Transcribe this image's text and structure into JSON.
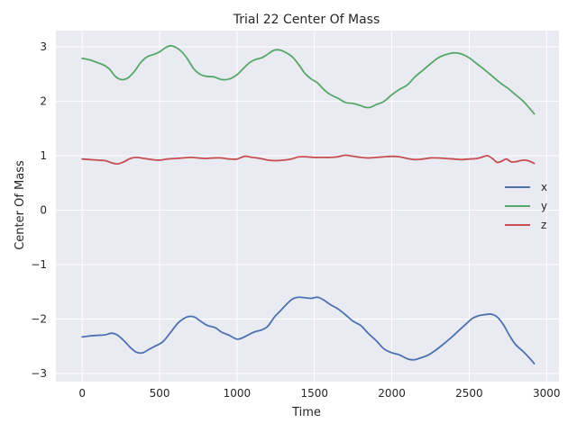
{
  "chart_data": {
    "type": "line",
    "title": "Trial 22 Center Of Mass",
    "xlabel": "Time",
    "ylabel": "Center Of Mass",
    "xlim": [
      -170,
      3080
    ],
    "ylim": [
      -3.15,
      3.3
    ],
    "xticks": [
      0,
      500,
      1000,
      1500,
      2000,
      2500,
      3000
    ],
    "xtick_labels": [
      "0",
      "500",
      "1000",
      "1500",
      "2000",
      "2500",
      "3000"
    ],
    "yticks": [
      -3,
      -2,
      -1,
      0,
      1,
      2,
      3
    ],
    "ytick_labels": [
      "−3",
      "−2",
      "−1",
      "0",
      "1",
      "2",
      "3"
    ],
    "grid": true,
    "legend_position": "center-right",
    "colors": {
      "background": "#eaeaf2",
      "grid": "#ffffff",
      "x": "#4c72b0",
      "y": "#55a868",
      "z": "#c44e52"
    },
    "series": [
      {
        "name": "x",
        "x": [
          0,
          50,
          100,
          150,
          190,
          230,
          270,
          310,
          350,
          390,
          430,
          470,
          520,
          570,
          620,
          670,
          700,
          730,
          770,
          810,
          860,
          900,
          950,
          1000,
          1040,
          1080,
          1120,
          1160,
          1200,
          1240,
          1280,
          1320,
          1360,
          1400,
          1440,
          1480,
          1520,
          1560,
          1600,
          1650,
          1700,
          1750,
          1800,
          1850,
          1900,
          1950,
          2000,
          2050,
          2100,
          2140,
          2180,
          2230,
          2280,
          2330,
          2380,
          2430,
          2480,
          2520,
          2560,
          2600,
          2640,
          2680,
          2720,
          2760,
          2800,
          2850,
          2900,
          2920
        ],
        "values": [
          -2.33,
          -2.31,
          -2.3,
          -2.29,
          -2.26,
          -2.3,
          -2.4,
          -2.52,
          -2.61,
          -2.62,
          -2.56,
          -2.5,
          -2.42,
          -2.25,
          -2.07,
          -1.97,
          -1.95,
          -1.97,
          -2.05,
          -2.12,
          -2.16,
          -2.24,
          -2.3,
          -2.37,
          -2.34,
          -2.28,
          -2.23,
          -2.2,
          -2.13,
          -1.97,
          -1.85,
          -1.73,
          -1.63,
          -1.6,
          -1.61,
          -1.62,
          -1.6,
          -1.65,
          -1.73,
          -1.81,
          -1.92,
          -2.04,
          -2.12,
          -2.27,
          -2.4,
          -2.55,
          -2.62,
          -2.66,
          -2.73,
          -2.75,
          -2.72,
          -2.67,
          -2.58,
          -2.47,
          -2.35,
          -2.22,
          -2.09,
          -1.99,
          -1.94,
          -1.92,
          -1.91,
          -1.96,
          -2.1,
          -2.3,
          -2.47,
          -2.6,
          -2.75,
          -2.82
        ]
      },
      {
        "name": "y",
        "x": [
          0,
          50,
          100,
          150,
          180,
          210,
          240,
          270,
          300,
          340,
          380,
          420,
          460,
          500,
          540,
          570,
          600,
          640,
          680,
          720,
          760,
          800,
          850,
          900,
          950,
          1000,
          1040,
          1080,
          1120,
          1160,
          1200,
          1240,
          1280,
          1320,
          1360,
          1400,
          1440,
          1480,
          1520,
          1560,
          1600,
          1650,
          1700,
          1750,
          1800,
          1830,
          1860,
          1900,
          1950,
          2000,
          2050,
          2100,
          2150,
          2200,
          2250,
          2300,
          2350,
          2400,
          2450,
          2500,
          2550,
          2600,
          2650,
          2700,
          2750,
          2800,
          2850,
          2900,
          2920
        ],
        "values": [
          2.79,
          2.76,
          2.71,
          2.65,
          2.58,
          2.47,
          2.41,
          2.4,
          2.44,
          2.56,
          2.72,
          2.82,
          2.86,
          2.91,
          2.99,
          3.02,
          3.0,
          2.92,
          2.78,
          2.6,
          2.5,
          2.46,
          2.45,
          2.4,
          2.41,
          2.49,
          2.6,
          2.71,
          2.77,
          2.8,
          2.87,
          2.94,
          2.94,
          2.89,
          2.81,
          2.67,
          2.51,
          2.41,
          2.34,
          2.22,
          2.13,
          2.06,
          1.98,
          1.96,
          1.92,
          1.89,
          1.89,
          1.94,
          2.0,
          2.12,
          2.22,
          2.3,
          2.45,
          2.57,
          2.69,
          2.8,
          2.86,
          2.89,
          2.87,
          2.8,
          2.69,
          2.58,
          2.46,
          2.34,
          2.24,
          2.12,
          2.0,
          1.84,
          1.77
        ]
      },
      {
        "name": "z",
        "x": [
          0,
          50,
          100,
          150,
          190,
          230,
          270,
          310,
          350,
          400,
          450,
          500,
          550,
          600,
          650,
          700,
          750,
          800,
          850,
          900,
          950,
          1000,
          1050,
          1100,
          1150,
          1200,
          1250,
          1300,
          1350,
          1400,
          1450,
          1500,
          1550,
          1600,
          1650,
          1700,
          1750,
          1800,
          1850,
          1900,
          1950,
          2000,
          2050,
          2100,
          2150,
          2200,
          2250,
          2300,
          2350,
          2400,
          2450,
          2500,
          2550,
          2600,
          2620,
          2650,
          2680,
          2710,
          2740,
          2770,
          2800,
          2830,
          2860,
          2890,
          2920
        ],
        "values": [
          0.94,
          0.93,
          0.92,
          0.91,
          0.87,
          0.85,
          0.89,
          0.95,
          0.97,
          0.95,
          0.93,
          0.92,
          0.94,
          0.95,
          0.96,
          0.97,
          0.96,
          0.95,
          0.96,
          0.96,
          0.94,
          0.94,
          0.99,
          0.97,
          0.95,
          0.92,
          0.91,
          0.92,
          0.94,
          0.98,
          0.98,
          0.97,
          0.97,
          0.97,
          0.98,
          1.01,
          0.99,
          0.97,
          0.96,
          0.97,
          0.98,
          0.99,
          0.98,
          0.95,
          0.93,
          0.94,
          0.96,
          0.96,
          0.95,
          0.94,
          0.93,
          0.94,
          0.95,
          0.99,
          1.0,
          0.95,
          0.88,
          0.9,
          0.94,
          0.89,
          0.89,
          0.91,
          0.92,
          0.9,
          0.86
        ]
      }
    ]
  }
}
